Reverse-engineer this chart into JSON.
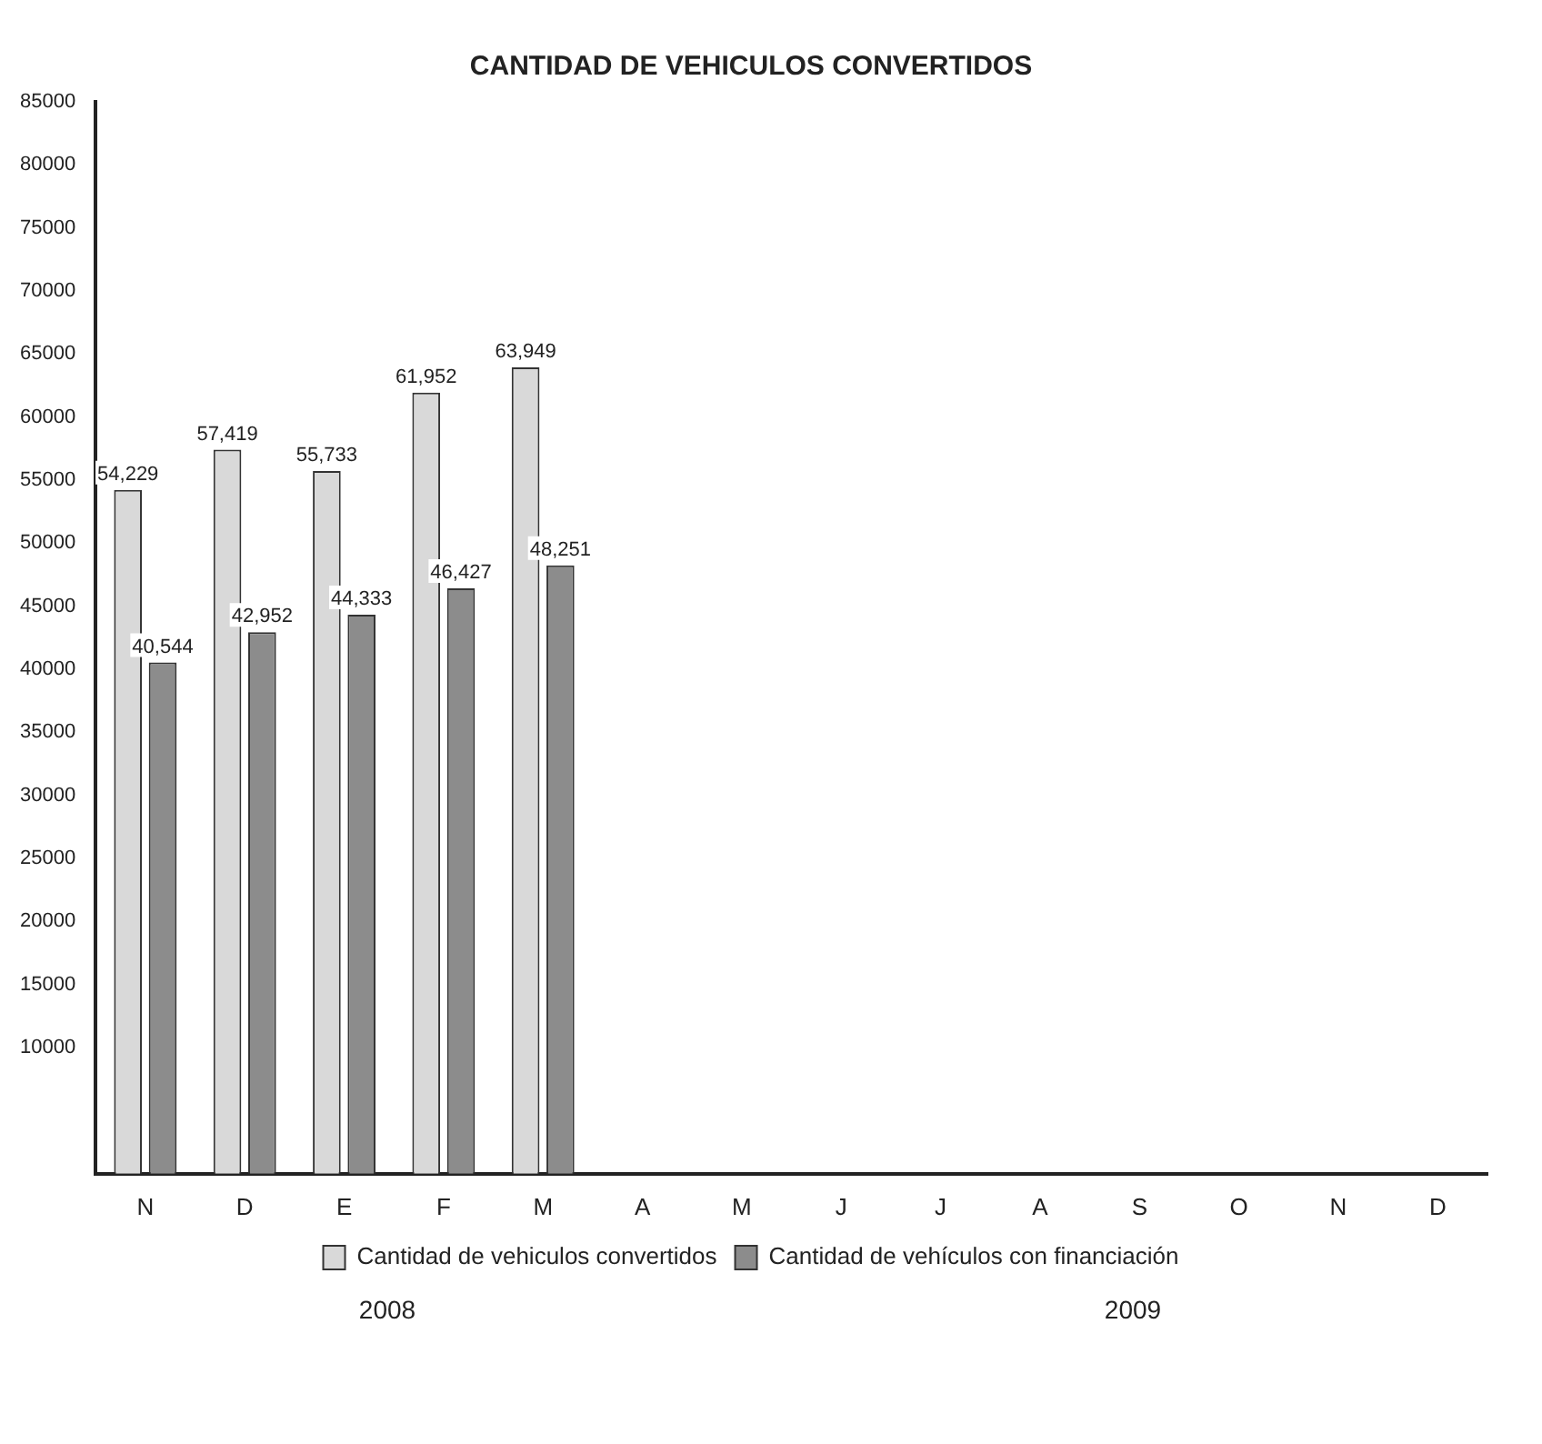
{
  "chart_data": {
    "type": "bar",
    "title": "CANTIDAD DE VEHICULOS CONVERTIDOS",
    "categories": [
      "N",
      "D",
      "E",
      "F",
      "M",
      "A",
      "M",
      "J",
      "J",
      "A",
      "S",
      "O",
      "N",
      "D"
    ],
    "series": [
      {
        "name": "Cantidad de vehiculos convertidos",
        "color": "#d9d9d9",
        "values": [
          54229,
          57419,
          55733,
          61952,
          63949,
          null,
          null,
          null,
          null,
          null,
          null,
          null,
          null,
          null
        ],
        "value_labels": [
          "54,229",
          "57,419",
          "55,733",
          "61,952",
          "63,949",
          null,
          null,
          null,
          null,
          null,
          null,
          null,
          null,
          null
        ]
      },
      {
        "name": "Cantidad de vehículos con financiación",
        "color": "#8c8c8c",
        "values": [
          40544,
          42952,
          44333,
          46427,
          48251,
          null,
          null,
          null,
          null,
          null,
          null,
          null,
          null,
          null
        ],
        "value_labels": [
          "40,544",
          "42,952",
          "44,333",
          "46,427",
          "48,251",
          null,
          null,
          null,
          null,
          null,
          null,
          null,
          null,
          null
        ]
      }
    ],
    "ylim": [
      0,
      85000
    ],
    "yticks": [
      10000,
      15000,
      20000,
      25000,
      30000,
      35000,
      40000,
      45000,
      50000,
      55000,
      60000,
      65000,
      70000,
      75000,
      80000,
      85000
    ],
    "legend": "bottom",
    "annotations": [
      "2008",
      "2009"
    ]
  }
}
